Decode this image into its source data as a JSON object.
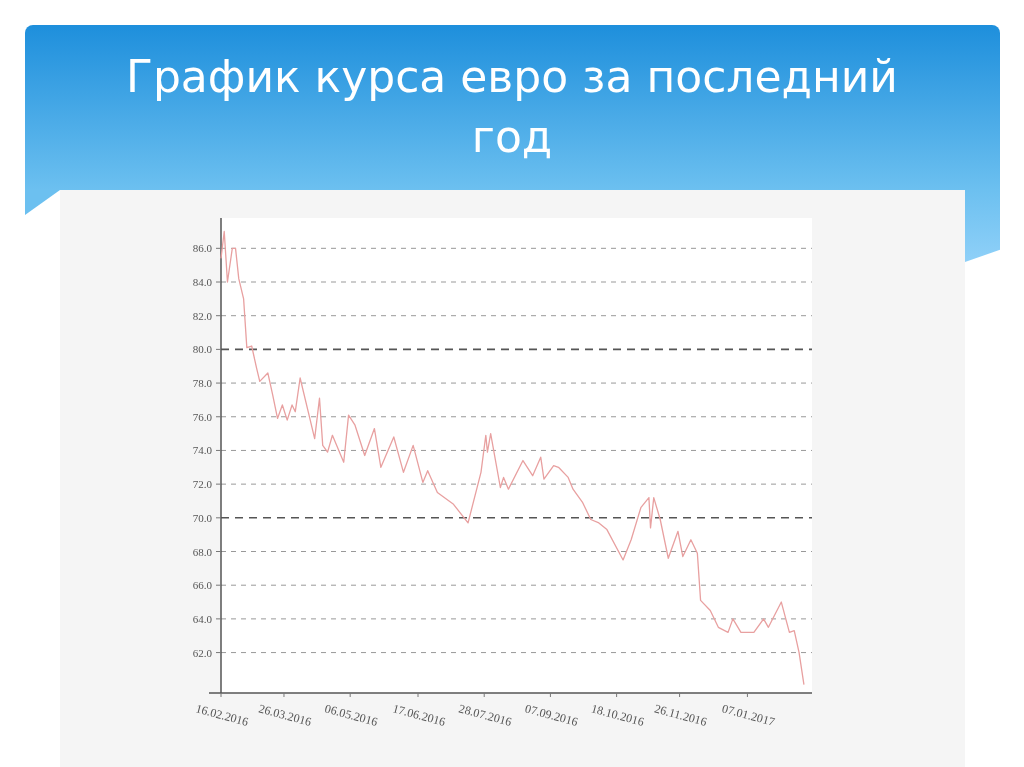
{
  "chart_data": {
    "type": "line",
    "title": "График курса евро за последний год",
    "x": [
      "2016-02-16",
      "2016-02-18",
      "2016-02-20",
      "2016-02-23",
      "2016-02-25",
      "2016-02-27",
      "2016-03-01",
      "2016-03-03",
      "2016-03-06",
      "2016-03-09",
      "2016-03-11",
      "2016-03-16",
      "2016-03-19",
      "2016-03-22",
      "2016-03-25",
      "2016-03-28",
      "2016-03-31",
      "2016-04-02",
      "2016-04-05",
      "2016-04-10",
      "2016-04-14",
      "2016-04-17",
      "2016-04-19",
      "2016-04-22",
      "2016-04-25",
      "2016-05-02",
      "2016-05-05",
      "2016-05-09",
      "2016-05-15",
      "2016-05-21",
      "2016-05-25",
      "2016-06-02",
      "2016-06-08",
      "2016-06-14",
      "2016-06-20",
      "2016-06-23",
      "2016-06-29",
      "2016-07-09",
      "2016-07-18",
      "2016-07-26",
      "2016-07-29",
      "2016-07-30",
      "2016-08-01",
      "2016-08-07",
      "2016-08-09",
      "2016-08-12",
      "2016-08-21",
      "2016-08-27",
      "2016-09-01",
      "2016-09-03",
      "2016-09-09",
      "2016-09-12",
      "2016-09-18",
      "2016-09-21",
      "2016-09-27",
      "2016-10-02",
      "2016-10-07",
      "2016-10-12",
      "2016-10-22",
      "2016-10-27",
      "2016-11-02",
      "2016-11-07",
      "2016-11-08",
      "2016-11-10",
      "2016-11-14",
      "2016-11-19",
      "2016-11-25",
      "2016-11-28",
      "2016-12-03",
      "2016-12-07",
      "2016-12-09",
      "2016-12-15",
      "2016-12-20",
      "2016-12-26",
      "2016-12-29",
      "2017-01-03",
      "2017-01-11",
      "2017-01-17",
      "2017-01-20",
      "2017-01-28",
      "2017-02-02",
      "2017-02-05",
      "2017-02-08",
      "2017-02-11"
    ],
    "series": [
      {
        "color": "#e8a0a0",
        "values": [
          85.4,
          87.0,
          84.0,
          86.0,
          86.0,
          84.2,
          83.0,
          80.1,
          80.2,
          78.9,
          78.1,
          78.6,
          77.3,
          75.9,
          76.7,
          75.8,
          76.7,
          76.3,
          78.3,
          76.3,
          74.7,
          77.1,
          74.3,
          73.9,
          74.9,
          73.3,
          76.1,
          75.5,
          73.7,
          75.3,
          73.0,
          74.8,
          72.7,
          74.3,
          72.1,
          72.8,
          71.5,
          70.8,
          69.7,
          72.7,
          74.9,
          73.9,
          75.0,
          71.8,
          72.4,
          71.7,
          73.4,
          72.5,
          73.6,
          72.3,
          73.1,
          73.0,
          72.4,
          71.7,
          70.9,
          69.9,
          69.7,
          69.3,
          67.5,
          68.7,
          70.6,
          71.2,
          69.4,
          71.2,
          69.9,
          67.6,
          69.2,
          67.7,
          68.7,
          67.9,
          65.1,
          64.5,
          63.5,
          63.2,
          64.0,
          63.2,
          63.2,
          64.0,
          63.5,
          65.0,
          63.2,
          63.3,
          62.0,
          60.1
        ]
      }
    ],
    "xlim": [
      "2016-02-16",
      "2017-02-16"
    ],
    "xticks": [
      {
        "value": "2016-02-16",
        "label": "16.02.2016"
      },
      {
        "value": "2016-03-26",
        "label": "26.03.2016"
      },
      {
        "value": "2016-05-06",
        "label": "06.05.2016"
      },
      {
        "value": "2016-06-17",
        "label": "17.06.2016"
      },
      {
        "value": "2016-07-28",
        "label": "28.07.2016"
      },
      {
        "value": "2016-09-07",
        "label": "07.09.2016"
      },
      {
        "value": "2016-10-18",
        "label": "18.10.2016"
      },
      {
        "value": "2016-11-26",
        "label": "26.11.2016"
      },
      {
        "value": "2017-01-07",
        "label": "07.01.2017"
      }
    ],
    "ylim": [
      59.6,
      87.8
    ],
    "yticks": [
      {
        "value": 62,
        "label": "62.0"
      },
      {
        "value": 64,
        "label": "64.0"
      },
      {
        "value": 66,
        "label": "66.0"
      },
      {
        "value": 68,
        "label": "68.0"
      },
      {
        "value": 70,
        "label": "70.0"
      },
      {
        "value": 72,
        "label": "72.0"
      },
      {
        "value": 74,
        "label": "74.0"
      },
      {
        "value": 76,
        "label": "76.0"
      },
      {
        "value": 78,
        "label": "78.0"
      },
      {
        "value": 80,
        "label": "80.0"
      },
      {
        "value": 82,
        "label": "82.0"
      },
      {
        "value": 84,
        "label": "84.0"
      },
      {
        "value": 86,
        "label": "86.0"
      }
    ],
    "grid": "y",
    "marker": "none",
    "line_style": "solid"
  }
}
